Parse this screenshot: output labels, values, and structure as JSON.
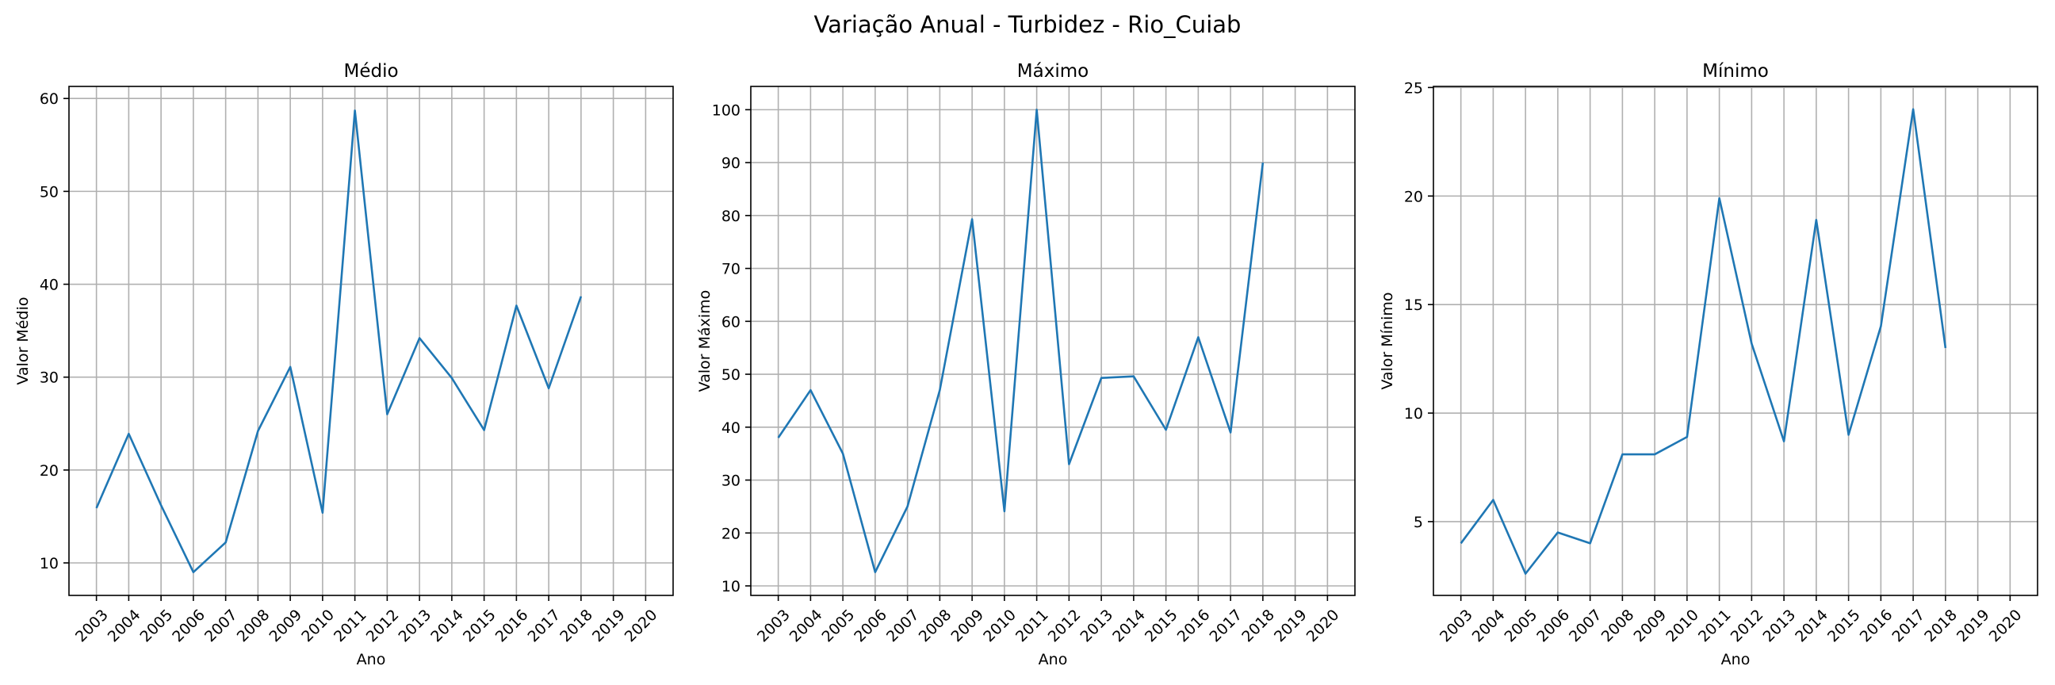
{
  "figure": {
    "title": "Variação Anual - Turbidez - Rio_Cuiab"
  },
  "colors": {
    "line": "#1f77b4",
    "grid": "#b0b0b0",
    "axes": "#000000",
    "background": "#ffffff"
  },
  "chart_data": [
    {
      "type": "line",
      "title": "Médio",
      "xlabel": "Ano",
      "ylabel": "Valor Médio",
      "categories": [
        "2003",
        "2004",
        "2005",
        "2006",
        "2007",
        "2008",
        "2009",
        "2010",
        "2011",
        "2012",
        "2013",
        "2014",
        "2015",
        "2016",
        "2017",
        "2018",
        "2019",
        "2020"
      ],
      "values": [
        15.9,
        23.9,
        16.2,
        9.0,
        12.2,
        24.2,
        31.1,
        15.4,
        58.7,
        26.0,
        34.2,
        29.9,
        24.3,
        37.7,
        28.8,
        38.7,
        null,
        null
      ],
      "ylim": [
        6.5,
        61.3
      ],
      "yticks": [
        10,
        20,
        30,
        40,
        50,
        60
      ],
      "grid": true
    },
    {
      "type": "line",
      "title": "Máximo",
      "xlabel": "Ano",
      "ylabel": "Valor Máximo",
      "categories": [
        "2003",
        "2004",
        "2005",
        "2006",
        "2007",
        "2008",
        "2009",
        "2010",
        "2011",
        "2012",
        "2013",
        "2014",
        "2015",
        "2016",
        "2017",
        "2018",
        "2019",
        "2020"
      ],
      "values": [
        38.0,
        47.0,
        35.0,
        12.6,
        25.0,
        47.0,
        79.3,
        24.1,
        100.0,
        33.0,
        49.3,
        49.6,
        39.5,
        57.0,
        39.0,
        90.0,
        null,
        null
      ],
      "ylim": [
        8.2,
        104.4
      ],
      "yticks": [
        10,
        20,
        30,
        40,
        50,
        60,
        70,
        80,
        90,
        100
      ],
      "grid": true
    },
    {
      "type": "line",
      "title": "Mínimo",
      "xlabel": "Ano",
      "ylabel": "Valor Mínimo",
      "categories": [
        "2003",
        "2004",
        "2005",
        "2006",
        "2007",
        "2008",
        "2009",
        "2010",
        "2011",
        "2012",
        "2013",
        "2014",
        "2015",
        "2016",
        "2017",
        "2018",
        "2019",
        "2020"
      ],
      "values": [
        4.0,
        6.0,
        2.6,
        4.5,
        4.0,
        8.1,
        8.1,
        8.9,
        19.9,
        13.2,
        8.7,
        18.9,
        9.0,
        14.0,
        24.0,
        13.0,
        null,
        null
      ],
      "ylim": [
        1.6,
        25.05
      ],
      "yticks": [
        5,
        10,
        15,
        20,
        25
      ],
      "grid": true
    }
  ]
}
